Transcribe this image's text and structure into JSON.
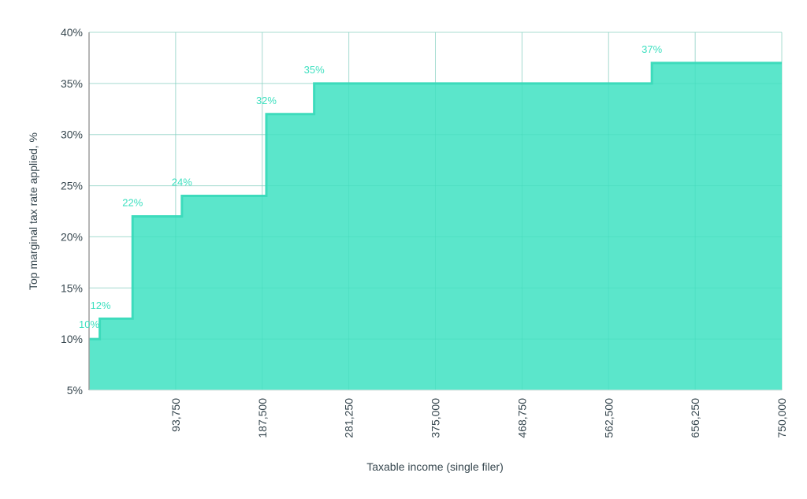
{
  "chart_data": {
    "type": "area",
    "subtype": "step",
    "title": "",
    "xlabel": "Taxable income (single filer)",
    "ylabel": "Top marginal tax rate applied, %",
    "xlim": [
      0,
      750000
    ],
    "ylim": [
      5,
      40
    ],
    "x_ticks": [
      93750,
      187500,
      281250,
      375000,
      468750,
      562500,
      656250,
      750000
    ],
    "x_tick_labels": [
      "93,750",
      "187,500",
      "281,250",
      "375,000",
      "468,750",
      "562,500",
      "656,250",
      "750,000"
    ],
    "y_ticks": [
      5,
      10,
      15,
      20,
      25,
      30,
      35,
      40
    ],
    "y_tick_labels": [
      "5%",
      "10%",
      "15%",
      "20%",
      "25%",
      "30%",
      "35%",
      "40%"
    ],
    "grid": true,
    "legend": null,
    "series": [
      {
        "name": "Top marginal tax rate",
        "color": "#52e5c8",
        "line_color": "#3ddbbc",
        "steps": [
          {
            "from": 0,
            "to": 11600,
            "rate": 10
          },
          {
            "from": 11600,
            "to": 47150,
            "rate": 12
          },
          {
            "from": 47150,
            "to": 100525,
            "rate": 22
          },
          {
            "from": 100525,
            "to": 191950,
            "rate": 24
          },
          {
            "from": 191950,
            "to": 243725,
            "rate": 32
          },
          {
            "from": 243725,
            "to": 609350,
            "rate": 35
          },
          {
            "from": 609350,
            "to": 750000,
            "rate": 37
          }
        ]
      }
    ],
    "data_labels": [
      "10%",
      "12%",
      "22%",
      "24%",
      "32%",
      "35%",
      "37%"
    ]
  }
}
